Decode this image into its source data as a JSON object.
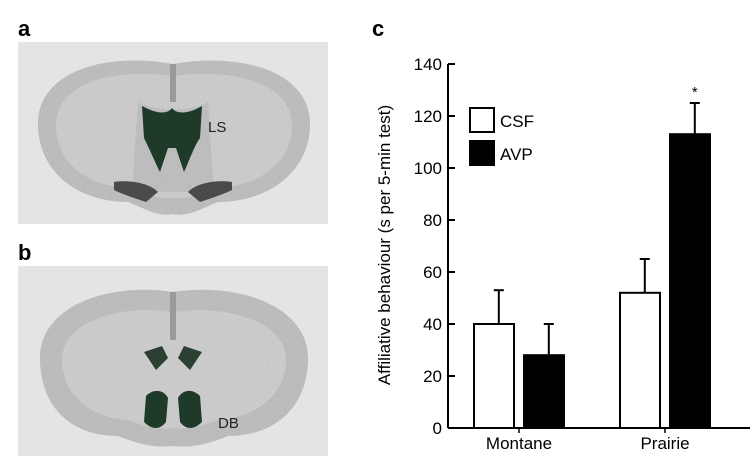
{
  "panels": {
    "a": {
      "letter": "a",
      "region_label": "LS"
    },
    "b": {
      "letter": "b",
      "region_label": "DB"
    },
    "c": {
      "letter": "c"
    }
  },
  "colors": {
    "stain": "#1e3b2a",
    "tissue": "#b9b9b9",
    "background": "#e4e4e4"
  },
  "chart_data": {
    "type": "bar",
    "title": "",
    "xlabel": "",
    "ylabel": "Affiliative behaviour (s per 5-min test)",
    "ylim": [
      0,
      140
    ],
    "yticks": [
      0,
      20,
      40,
      60,
      80,
      100,
      120,
      140
    ],
    "categories": [
      "Montane",
      "Prairie"
    ],
    "series": [
      {
        "name": "CSF",
        "color": "#ffffff",
        "values": [
          40,
          52
        ],
        "errors": [
          13,
          13
        ]
      },
      {
        "name": "AVP",
        "color": "#000000",
        "values": [
          28,
          113
        ],
        "errors": [
          12,
          12
        ]
      }
    ],
    "legend": {
      "placement": "top-left"
    },
    "annotations": [
      {
        "text": "*",
        "category": "Prairie",
        "series": "AVP"
      }
    ]
  }
}
